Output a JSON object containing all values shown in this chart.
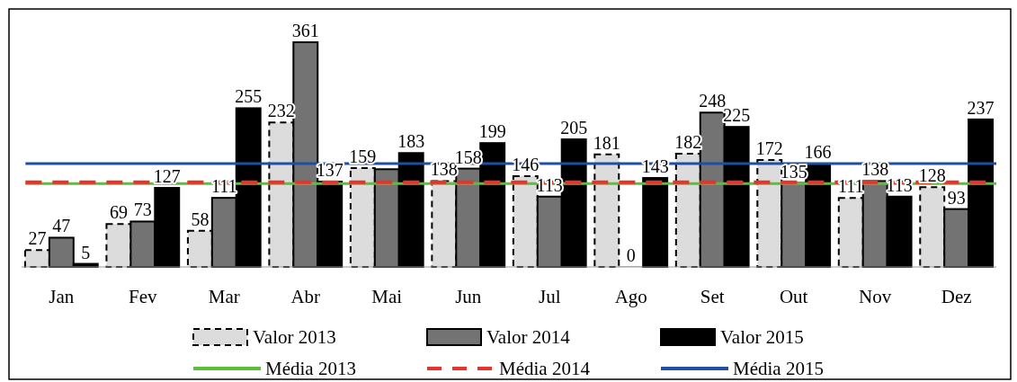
{
  "chart_data": {
    "type": "bar",
    "categories": [
      "Jan",
      "Fev",
      "Mar",
      "Abr",
      "Mai",
      "Jun",
      "Jul",
      "Ago",
      "Set",
      "Out",
      "Nov",
      "Dez"
    ],
    "series": [
      {
        "name": "Valor 2013",
        "color": "#dcdcdc",
        "line_style": "dashed",
        "values": [
          27,
          69,
          58,
          232,
          159,
          138,
          146,
          181,
          182,
          172,
          111,
          128
        ],
        "value_labels": [
          "27",
          "69",
          "58",
          "232",
          "159",
          "138",
          "146",
          "181",
          "182",
          "172",
          "111",
          "128"
        ]
      },
      {
        "name": "Valor 2014",
        "color": "#737373",
        "values": [
          47,
          73,
          111,
          361,
          157,
          158,
          113,
          0,
          248,
          135,
          138,
          93
        ],
        "value_labels": [
          "47",
          "73",
          "111",
          "361",
          null,
          "158",
          "113",
          "0",
          "248",
          "135",
          "138",
          "93"
        ]
      },
      {
        "name": "Valor 2015",
        "color": "#000000",
        "values": [
          5,
          127,
          255,
          137,
          183,
          199,
          205,
          143,
          225,
          166,
          113,
          237
        ],
        "value_labels": [
          "5",
          "127",
          "255",
          "137",
          "183",
          "199",
          "205",
          "143",
          "225",
          "166",
          "113",
          "237"
        ]
      }
    ],
    "ref_lines": [
      {
        "axis": "y",
        "value": 134,
        "label": "Média 2013",
        "color": "#5cbf3a",
        "line_style": "solid"
      },
      {
        "axis": "y",
        "value": 136,
        "label": "Média 2014",
        "color": "#e8322b",
        "line_style": "dashed"
      },
      {
        "axis": "y",
        "value": 166,
        "label": "Média 2015",
        "color": "#1f4ea3",
        "line_style": "solid"
      }
    ],
    "legend": "bottom",
    "grid": false
  }
}
